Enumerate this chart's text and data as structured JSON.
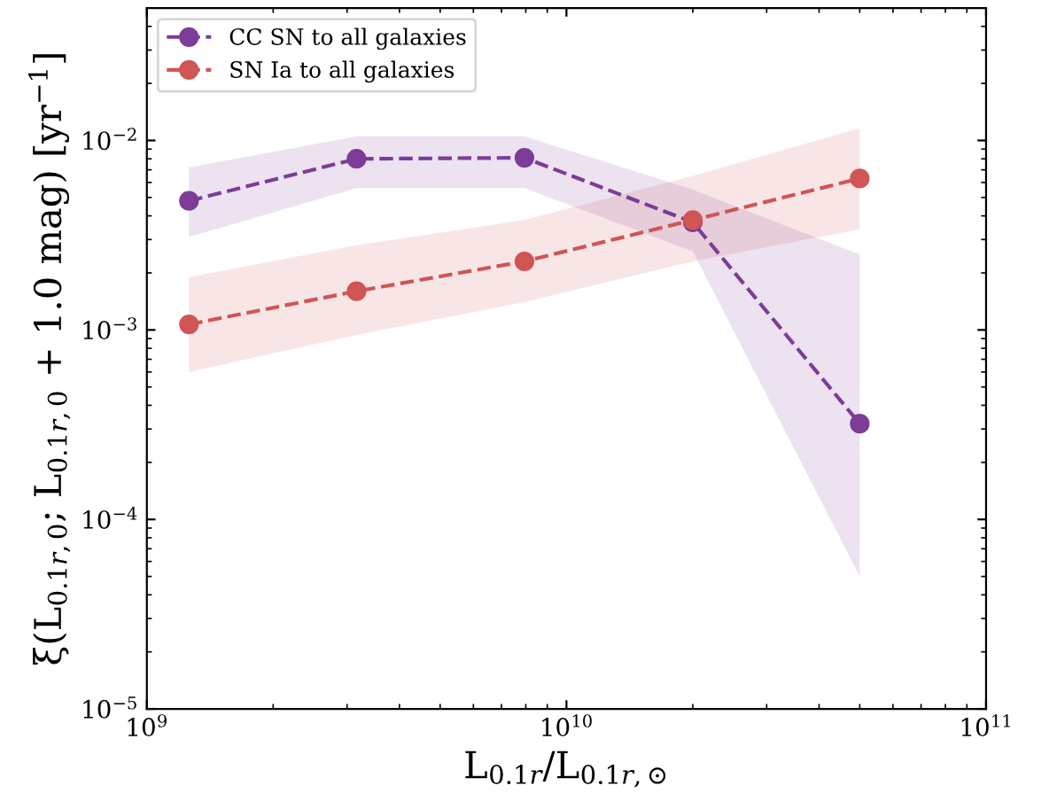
{
  "chart_data": {
    "type": "line",
    "xlabel": "L$_{0.1r}$/L$_{0.1r,⊙}$",
    "ylabel": "ξ(L$_{0.1r,0}$; L$_{0.1r,0}$ + 1.0 mag) [yr$^{−1}$]",
    "x": [
      1260000000.0,
      3160000000.0,
      7940000000.0,
      20000000000.0,
      50000000000.0
    ],
    "series": [
      {
        "name": "CC SN to all galaxies",
        "color": "#7d3c98",
        "values": [
          0.0048,
          0.008,
          0.0081,
          0.0037,
          0.00032
        ],
        "lower": [
          0.0031,
          0.0056,
          0.0056,
          0.0026,
          5e-05
        ],
        "upper": [
          0.0072,
          0.0105,
          0.0105,
          0.0055,
          0.0025
        ]
      },
      {
        "name": "SN Ia to all galaxies",
        "color": "#d05555",
        "values": [
          0.00107,
          0.0016,
          0.0023,
          0.0038,
          0.0063
        ],
        "lower": [
          0.0006,
          0.00094,
          0.0014,
          0.0023,
          0.0034
        ],
        "upper": [
          0.0019,
          0.0028,
          0.0038,
          0.0065,
          0.0116
        ]
      }
    ],
    "log": "xy",
    "xlim": [
      1000000000.0,
      100000000000.0
    ],
    "ylim": [
      1e-05,
      0.05
    ],
    "xticks": [
      {
        "value": 1000000000.0,
        "label": "10$^{9}$"
      },
      {
        "value": 10000000000.0,
        "label": "10$^{10}$"
      },
      {
        "value": 100000000000.0,
        "label": "10$^{11}$"
      }
    ],
    "yticks": [
      {
        "value": 1e-05,
        "label": "10$^{−5}$"
      },
      {
        "value": 0.0001,
        "label": "10$^{−4}$"
      },
      {
        "value": 0.001,
        "label": "10$^{−3}$"
      },
      {
        "value": 0.01,
        "label": "10$^{−2}$"
      }
    ],
    "marker": "circle",
    "line_style": "dashed",
    "legend": "top left",
    "grid": false
  }
}
